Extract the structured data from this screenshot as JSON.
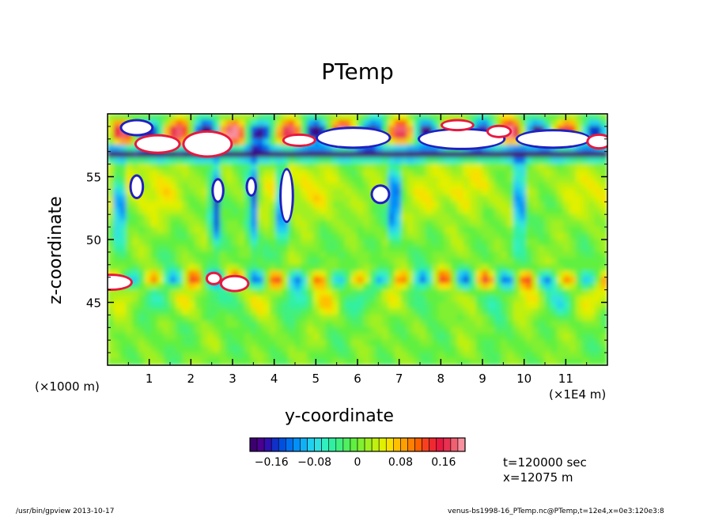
{
  "chart_data": {
    "type": "heatmap",
    "title": "PTemp",
    "xlabel": "y-coordinate",
    "ylabel": "z-coordinate",
    "x_axis_note_left": "(×1000 m)",
    "x_axis_note_right": "(×1E4 m)",
    "xlim": [
      0,
      12
    ],
    "ylim": [
      40,
      60
    ],
    "x_ticks": [
      "1",
      "2",
      "3",
      "4",
      "5",
      "6",
      "7",
      "8",
      "9",
      "10",
      "11"
    ],
    "y_ticks": [
      "45",
      "50",
      "55"
    ],
    "colorbar": {
      "ticks": [
        "−0.16",
        "−0.08",
        "0",
        "0.08",
        "0.16"
      ],
      "tick_values": [
        -0.16,
        -0.08,
        0,
        0.08,
        0.16
      ],
      "range": [
        -0.2,
        0.2
      ],
      "colors": [
        "#3c0070",
        "#4b0090",
        "#3010b0",
        "#1030c8",
        "#0050e0",
        "#0070f0",
        "#0090f8",
        "#10b0f8",
        "#20d0f0",
        "#30e0e0",
        "#30f0c0",
        "#30f0a0",
        "#40f080",
        "#50f060",
        "#60f040",
        "#80f030",
        "#a0f020",
        "#c0f010",
        "#e0f000",
        "#f8e000",
        "#ffc000",
        "#ffa000",
        "#ff8000",
        "#ff6000",
        "#f84020",
        "#f02830",
        "#e81840",
        "#e83050",
        "#f06070",
        "#f890a0"
      ]
    },
    "annotations": [
      "t=120000 sec",
      "x=12075 m"
    ]
  },
  "footer": {
    "left": "/usr/bin/gpview   2013-10-17",
    "right": "venus-bs1998-16_PTemp.nc@PTemp,t=12e4,x=0e3:120e3:8"
  }
}
